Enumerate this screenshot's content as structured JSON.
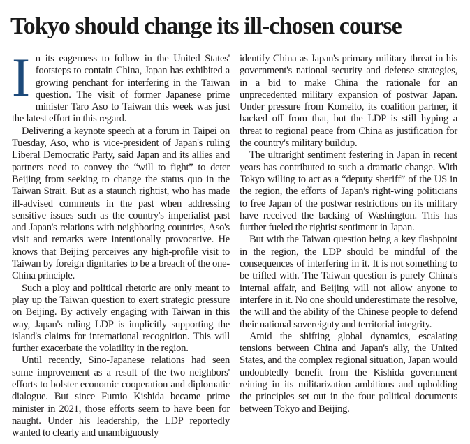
{
  "article": {
    "title": "Tokyo should change its ill-chosen course",
    "drop_cap": "I",
    "drop_cap_color": "#1d4a7a",
    "left_column": [
      "n its eagerness to follow in the United States' footsteps to contain China, Japan has exhibited a growing penchant for interfering in the Taiwan question. The visit of former Japanese prime minister Taro Aso to Taiwan this week was just the latest effort in this regard.",
      "Delivering a keynote speech at a forum in Taipei on Tuesday, Aso, who is vice-president of Japan's ruling Liberal Democratic Party, said Japan and its allies and partners need to convey the “will to fight” to deter Beijing from seeking to change the status quo in the Taiwan Strait. But as a staunch rightist, who has made ill-advised comments in the past when addressing sensitive issues such as the country's imperialist past and Japan's relations with neighboring countries, Aso's visit and remarks were intentionally provocative. He knows that Beijing perceives any high-profile visit to Taiwan by foreign dignitaries to be a breach of the one-China principle.",
      "Such a ploy and political rhetoric are only meant to play up the Taiwan question to exert strategic pressure on Beijing. By actively engaging with Taiwan in this way, Japan's ruling LDP is implicitly supporting the island's claims for international recognition. This will further exacerbate the volatility in the region.",
      "Until recently, Sino-Japanese relations had seen some improvement as a result of the two neighbors' efforts to bolster economic cooperation and diplomatic dialogue. But since Fumio Kishida became prime minister in 2021, those efforts seem to have been for naught. Under his leadership, the LDP reportedly wanted to clearly and unambiguously"
    ],
    "right_column": [
      "identify China as Japan's primary military threat in his government's national security and defense strategies, in a bid to make China the rationale for an unprecedented military expansion of postwar Japan. Under pressure from Komeito, its coalition partner, it backed off from that, but the LDP is still hyping a threat to regional peace from China as justification for the country's military buildup.",
      "The ultraright sentiment festering in Japan in recent years has contributed to such a dramatic change. With Tokyo willing to act as a “deputy sheriff” of the US in the region, the efforts of Japan's right-wing politicians to free Japan of the postwar restrictions on its military have received the backing of Washington. This has further fueled the rightist sentiment in Japan.",
      "But with the Taiwan question being a key flashpoint in the region, the LDP should be mindful of the consequences of interfering in it. It is not something to be trifled with. The Taiwan question is purely China's internal affair, and Beijing will not allow anyone to interfere in it. No one should underestimate the resolve, the will and the ability of the Chinese people to defend their national sovereignty and territorial integrity.",
      "Amid the shifting global dynamics, escalating tensions between China and Japan's ally, the United States, and the complex regional situation, Japan would undoubtedly benefit from the Kishida government reining in its militarization ambitions and upholding the principles set out in the four political documents between Tokyo and Beijing."
    ]
  }
}
